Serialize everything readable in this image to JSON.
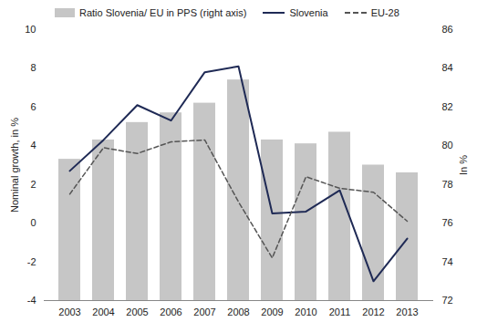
{
  "chart_data": {
    "type": "bar",
    "ylabel": "Nominal growth, in %",
    "y2label": "In %",
    "categories": [
      "2003",
      "2004",
      "2005",
      "2006",
      "2007",
      "2008",
      "2009",
      "2010",
      "2011",
      "2012",
      "2013"
    ],
    "series": [
      {
        "name": "Ratio Slovenia/ EU in PPS (right axis)",
        "type": "bar",
        "axis": "y2",
        "color": "#c6c6c6",
        "values": [
          79.3,
          80.3,
          81.2,
          81.7,
          82.2,
          83.4,
          80.3,
          80.1,
          80.7,
          79.0,
          78.6
        ]
      },
      {
        "name": "Slovenia",
        "type": "line",
        "color": "#1f2a55",
        "line_style": "solid",
        "values": [
          2.7,
          4.3,
          6.1,
          5.3,
          7.8,
          8.1,
          0.5,
          0.6,
          1.7,
          -3.0,
          -0.8
        ]
      },
      {
        "name": "EU-28",
        "type": "line",
        "color": "#555555",
        "line_style": "dashed",
        "values": [
          1.5,
          3.9,
          3.6,
          4.2,
          4.3,
          1.1,
          -1.8,
          2.4,
          1.8,
          1.6,
          0.1
        ]
      }
    ],
    "ylim": [
      -4,
      10
    ],
    "yticks": [
      -4,
      -2,
      0,
      2,
      4,
      6,
      8,
      10
    ],
    "y2lim": [
      72,
      86
    ],
    "y2ticks": [
      72,
      74,
      76,
      78,
      80,
      82,
      84,
      86
    ],
    "legend": "top"
  }
}
